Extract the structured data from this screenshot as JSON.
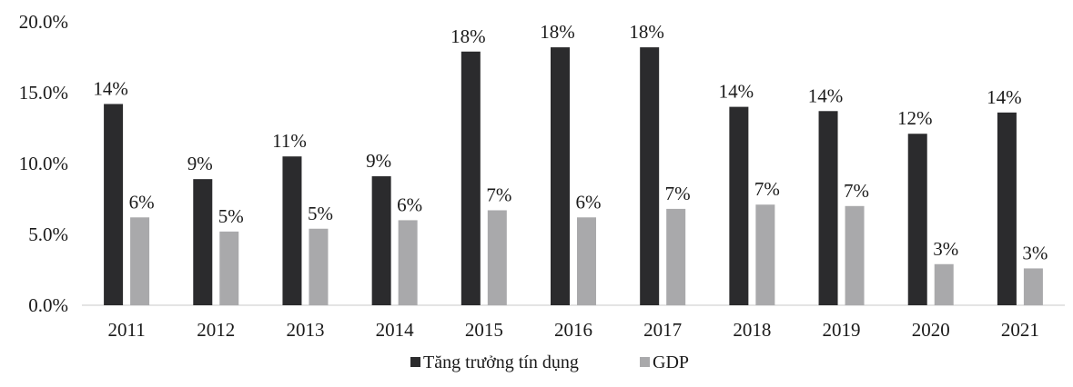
{
  "chart_data": {
    "type": "bar",
    "title": "",
    "xlabel": "",
    "ylabel": "",
    "ylim": [
      0,
      20
    ],
    "yticks": [
      "0.0%",
      "5.0%",
      "10.0%",
      "15.0%",
      "20.0%"
    ],
    "ytick_values": [
      0,
      5,
      10,
      15,
      20
    ],
    "grid": false,
    "legend_position": "bottom",
    "categories": [
      "2011",
      "2012",
      "2013",
      "2014",
      "2015",
      "2016",
      "2017",
      "2018",
      "2019",
      "2020",
      "2021"
    ],
    "series": [
      {
        "name": "Tăng trưởng tín dụng",
        "color": "#2b2b2d",
        "values": [
          14.2,
          8.9,
          10.5,
          9.1,
          17.9,
          18.2,
          18.2,
          14.0,
          13.7,
          12.1,
          13.6
        ],
        "labels": [
          "14%",
          "9%",
          "11%",
          "9%",
          "18%",
          "18%",
          "18%",
          "14%",
          "14%",
          "12%",
          "14%"
        ]
      },
      {
        "name": "GDP",
        "color": "#a9a9ab",
        "values": [
          6.2,
          5.2,
          5.4,
          6.0,
          6.7,
          6.2,
          6.8,
          7.1,
          7.0,
          2.9,
          2.6
        ],
        "labels": [
          "6%",
          "5%",
          "5%",
          "6%",
          "7%",
          "6%",
          "7%",
          "7%",
          "7%",
          "3%",
          "3%"
        ]
      }
    ]
  }
}
